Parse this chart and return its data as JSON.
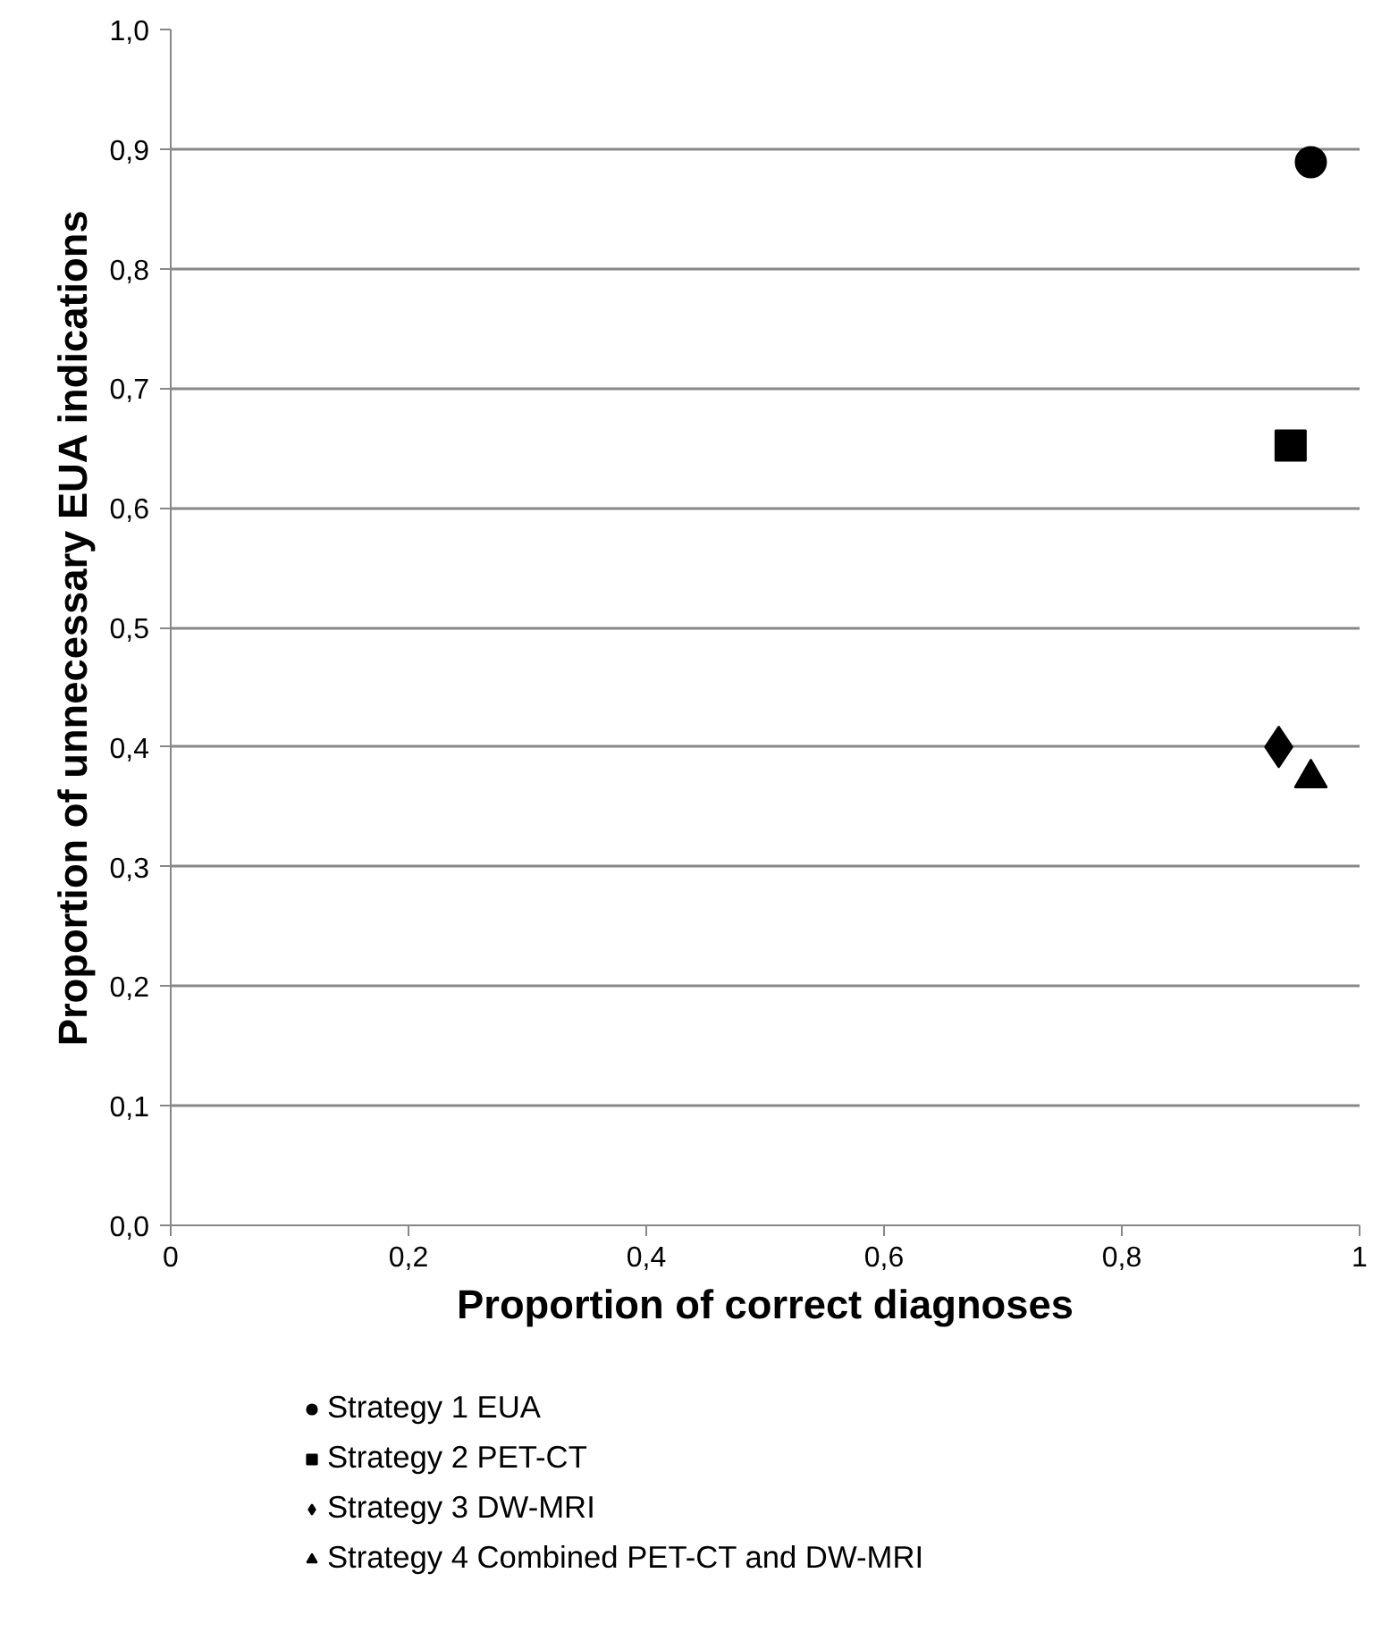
{
  "chart_data": {
    "type": "scatter",
    "xlabel": "Proportion of correct diagnoses",
    "ylabel": "Proportion of unnecessary EUA indications",
    "xlim": [
      0,
      1
    ],
    "ylim": [
      0,
      1
    ],
    "xticks": [
      0,
      {
        "value": 0.2,
        "label": "0,2"
      },
      {
        "value": 0.4,
        "label": "0,4"
      },
      {
        "value": 0.6,
        "label": "0,6"
      },
      {
        "value": 0.8,
        "label": "0,8"
      },
      1
    ],
    "yticks": [
      {
        "value": 0,
        "label": "0,0"
      },
      {
        "value": 0.1,
        "label": "0,1"
      },
      {
        "value": 0.2,
        "label": "0,2"
      },
      {
        "value": 0.3,
        "label": "0,3"
      },
      {
        "value": 0.4,
        "label": "0,4"
      },
      {
        "value": 0.5,
        "label": "0,5"
      },
      {
        "value": 0.6,
        "label": "0,6"
      },
      {
        "value": 0.7,
        "label": "0,7"
      },
      {
        "value": 0.8,
        "label": "0,8"
      },
      {
        "value": 0.9,
        "label": "0,9"
      },
      {
        "value": 1,
        "label": "1,0"
      }
    ],
    "grid": "y",
    "legend": "bottom",
    "series": [
      {
        "name": "Strategy 1 EUA",
        "color": "#000000",
        "marker": "circle",
        "x": [
          0.959
        ],
        "values": [
          0.889
        ]
      },
      {
        "name": "Strategy 2 PET-CT",
        "color": "#000000",
        "marker": "square",
        "x": [
          0.942
        ],
        "values": [
          0.652
        ]
      },
      {
        "name": "Strategy 3 DW-MRI",
        "color": "#000000",
        "marker": "diamond",
        "x": [
          0.932
        ],
        "values": [
          0.4
        ]
      },
      {
        "name": "Strategy 4 Combined PET-CT and DW-MRI",
        "color": "#000000",
        "marker": "triangle",
        "x": [
          0.959
        ],
        "values": [
          0.374
        ]
      }
    ]
  }
}
